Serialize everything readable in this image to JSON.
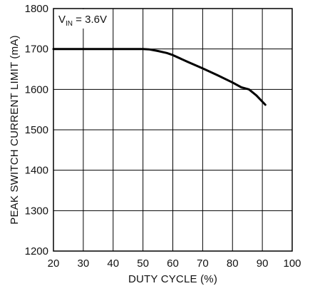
{
  "chart_data": {
    "type": "line",
    "xlabel": "DUTY CYCLE (%)",
    "ylabel": "PEAK SWITCH CURRENT LIMIT (mA)",
    "annotation": {
      "main": "V",
      "sub": "IN",
      "rest": " = 3.6V"
    },
    "xlim": [
      20,
      100
    ],
    "ylim": [
      1200,
      1800
    ],
    "xticks": [
      20,
      30,
      40,
      50,
      60,
      70,
      80,
      90,
      100
    ],
    "yticks": [
      1200,
      1300,
      1400,
      1500,
      1600,
      1700,
      1800
    ],
    "grid": true,
    "series": [
      {
        "color": "#000000",
        "x": [
          20,
          30,
          40,
          50,
          52,
          55,
          58,
          60,
          65,
          70,
          75,
          80,
          83,
          85.5,
          88,
          91
        ],
        "y": [
          1700,
          1700,
          1700,
          1700,
          1699,
          1695,
          1690,
          1685,
          1668,
          1652,
          1635,
          1617,
          1605,
          1600,
          1585,
          1562
        ]
      }
    ]
  }
}
